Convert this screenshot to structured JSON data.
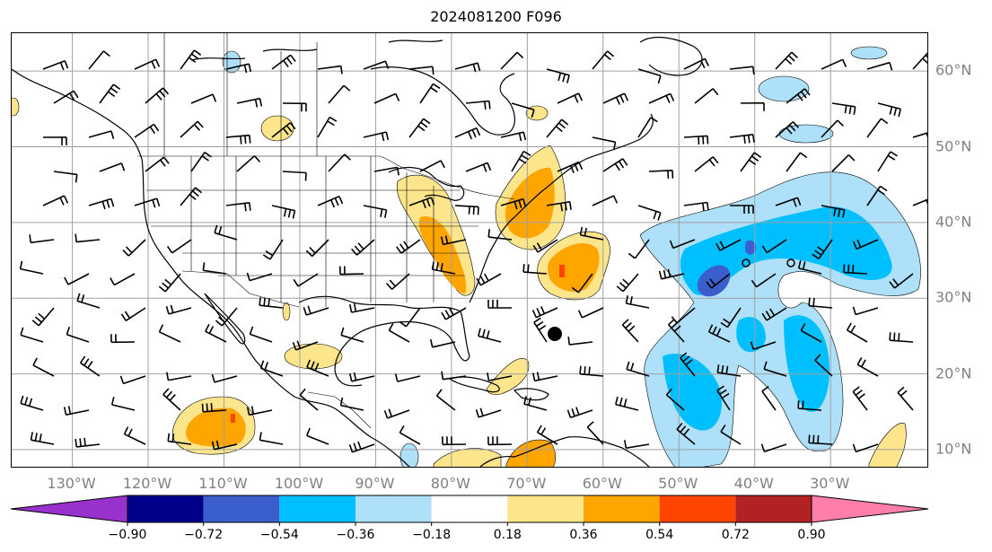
{
  "title": "2024081200 F096",
  "map": {
    "projection": "plate-carree",
    "lon_range": [
      -138,
      -17
    ],
    "lat_range": [
      7.5,
      65
    ],
    "gridlines": true,
    "lon_labels": [
      "130°W",
      "120°W",
      "110°W",
      "100°W",
      "90°W",
      "80°W",
      "70°W",
      "60°W",
      "50°W",
      "40°W",
      "30°W"
    ],
    "lon_values": [
      -130,
      -120,
      -110,
      -100,
      -90,
      -80,
      -70,
      -60,
      -50,
      -40,
      -30
    ],
    "lat_labels": [
      "60°N",
      "50°N",
      "40°N",
      "30°N",
      "20°N",
      "10°N"
    ],
    "lat_values": [
      60,
      50,
      40,
      30,
      20,
      10
    ],
    "storm_center": {
      "lon": -69.7,
      "lat": 25.5
    },
    "features": [
      "wind-barbs",
      "coastlines",
      "state-borders",
      "filled-anomaly-contours"
    ]
  },
  "colorbar": {
    "levels": [
      "−0.90",
      "−0.72",
      "−0.54",
      "−0.36",
      "−0.18",
      "0.18",
      "0.36",
      "0.54",
      "0.72",
      "0.90"
    ],
    "colors": [
      "#9932cc",
      "#00008b",
      "#3a5fcd",
      "#00bfff",
      "#aee0fa",
      "#ffffff",
      "#fde58b",
      "#ffa500",
      "#ff4500",
      "#b22222",
      "#ff7fa8"
    ],
    "extend": "both"
  },
  "colors": {
    "neg_light": "#aee0fa",
    "neg_mid": "#00bfff",
    "neg_dark": "#3a5fcd",
    "pos_light": "#fde58b",
    "pos_mid": "#ffa500",
    "pos_dark": "#ff4500"
  }
}
